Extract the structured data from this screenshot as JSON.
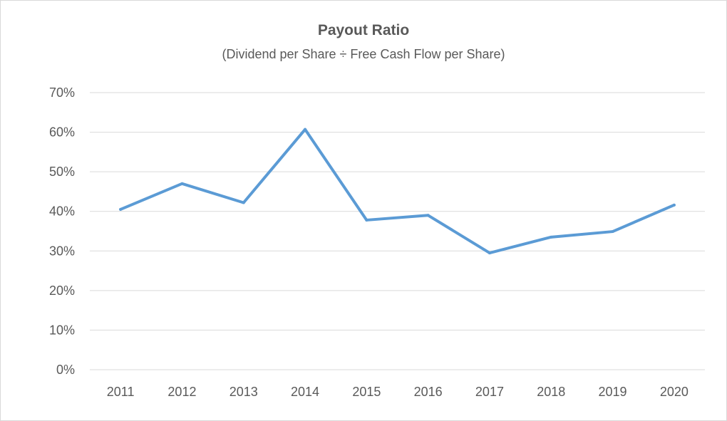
{
  "chart_data": {
    "type": "line",
    "title": "Payout Ratio",
    "subtitle": "(Dividend per Share ÷ Free Cash Flow per Share)",
    "categories": [
      "2011",
      "2012",
      "2013",
      "2014",
      "2015",
      "2016",
      "2017",
      "2018",
      "2019",
      "2020"
    ],
    "series": [
      {
        "values": [
          0.405,
          0.47,
          0.422,
          0.607,
          0.378,
          0.39,
          0.295,
          0.335,
          0.349,
          0.416
        ]
      }
    ],
    "ylim": [
      0,
      0.7
    ],
    "yticks": [
      "0%",
      "10%",
      "20%",
      "30%",
      "40%",
      "50%",
      "60%",
      "70%"
    ],
    "xlabel": "",
    "ylabel": "",
    "grid": true,
    "legend": "none",
    "line_color": "#5b9bd5",
    "grid_color": "#d9d9d9"
  }
}
